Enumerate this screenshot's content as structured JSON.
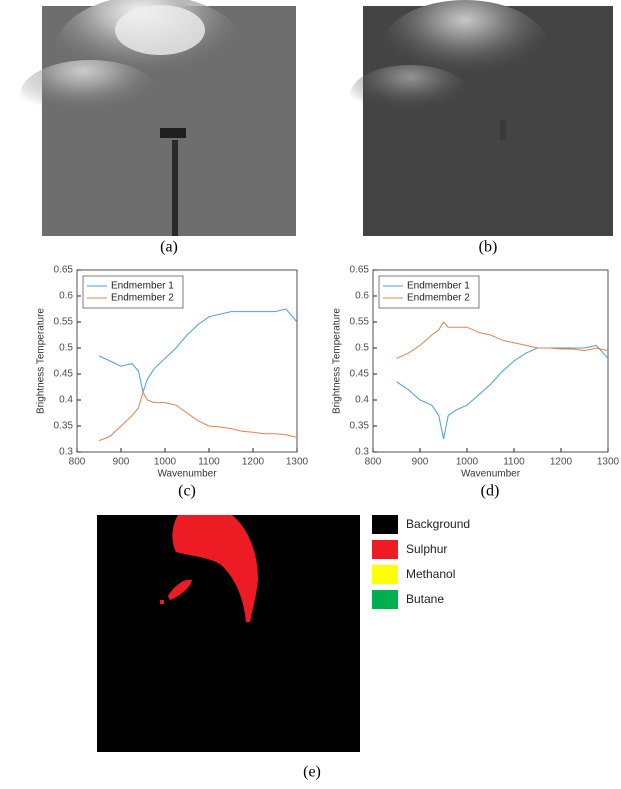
{
  "captions": [
    "(a)",
    "(b)",
    "(c)",
    "(d)",
    "(e)"
  ],
  "segmentation_legend": [
    {
      "name": "Background",
      "color": "#000000"
    },
    {
      "name": "Sulphur",
      "color": "#ed1c24"
    },
    {
      "name": "Methanol",
      "color": "#ffff00"
    },
    {
      "name": "Butane",
      "color": "#00b050"
    }
  ],
  "chart_data": [
    {
      "type": "line",
      "xlabel": "Wavenumber",
      "ylabel": "Brightness Temperature",
      "x": [
        850,
        875,
        900,
        925,
        940,
        950,
        960,
        975,
        1000,
        1025,
        1050,
        1075,
        1100,
        1125,
        1150,
        1175,
        1200,
        1225,
        1250,
        1275,
        1300
      ],
      "series": [
        {
          "name": "Endmember 1",
          "color": "#4a9fd5",
          "values": [
            0.485,
            0.475,
            0.465,
            0.47,
            0.455,
            0.415,
            0.44,
            0.46,
            0.48,
            0.5,
            0.525,
            0.545,
            0.56,
            0.565,
            0.57,
            0.57,
            0.57,
            0.57,
            0.57,
            0.575,
            0.55
          ]
        },
        {
          "name": "Endmember 2",
          "color": "#e8804a",
          "values": [
            0.322,
            0.33,
            0.35,
            0.37,
            0.385,
            0.415,
            0.4,
            0.395,
            0.395,
            0.39,
            0.375,
            0.36,
            0.35,
            0.348,
            0.345,
            0.34,
            0.338,
            0.335,
            0.335,
            0.333,
            0.328
          ]
        }
      ],
      "xlim": [
        800,
        1300
      ],
      "ylim": [
        0.3,
        0.65
      ],
      "xticks": [
        800,
        900,
        1000,
        1100,
        1200,
        1300
      ],
      "yticks": [
        0.3,
        0.35,
        0.4,
        0.45,
        0.5,
        0.55,
        0.6,
        0.65
      ],
      "legend": "upper left"
    },
    {
      "type": "line",
      "xlabel": "Wavenumber",
      "ylabel": "Brightness Temperature",
      "x": [
        850,
        875,
        900,
        925,
        940,
        950,
        960,
        975,
        1000,
        1025,
        1050,
        1075,
        1100,
        1125,
        1150,
        1175,
        1200,
        1225,
        1250,
        1275,
        1300
      ],
      "series": [
        {
          "name": "Endmember 1",
          "color": "#4a9fd5",
          "values": [
            0.435,
            0.42,
            0.4,
            0.39,
            0.37,
            0.325,
            0.37,
            0.38,
            0.39,
            0.41,
            0.43,
            0.455,
            0.475,
            0.49,
            0.5,
            0.5,
            0.5,
            0.5,
            0.5,
            0.505,
            0.48
          ]
        },
        {
          "name": "Endmember 2",
          "color": "#e8804a",
          "values": [
            0.48,
            0.49,
            0.505,
            0.525,
            0.535,
            0.55,
            0.54,
            0.54,
            0.54,
            0.53,
            0.525,
            0.515,
            0.51,
            0.505,
            0.5,
            0.5,
            0.498,
            0.498,
            0.495,
            0.5,
            0.495
          ]
        }
      ],
      "xlim": [
        800,
        1300
      ],
      "ylim": [
        0.3,
        0.65
      ],
      "xticks": [
        800,
        900,
        1000,
        1100,
        1200,
        1300
      ],
      "yticks": [
        0.3,
        0.35,
        0.4,
        0.45,
        0.5,
        0.55,
        0.6,
        0.65
      ],
      "legend": "upper left"
    }
  ]
}
